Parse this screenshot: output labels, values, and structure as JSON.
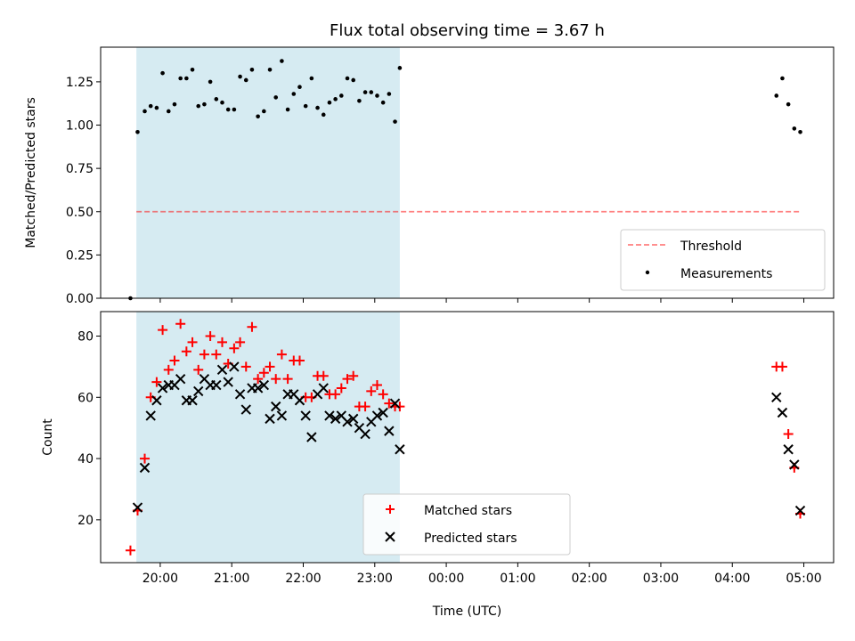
{
  "chart_data": [
    {
      "type": "scatter",
      "title": "Flux total observing time = 3.67 h",
      "xlabel": "",
      "ylabel": "Matched/Predicted stars",
      "ylim": [
        0,
        1.45
      ],
      "yticks": [
        "0.00",
        "0.25",
        "0.50",
        "0.75",
        "1.00",
        "1.25"
      ],
      "shaded_span": [
        "19:40",
        "23:21"
      ],
      "shade_color": "#add8e6",
      "threshold": {
        "label": "Threshold",
        "value": 0.5,
        "x": [
          "19:40",
          "04:57"
        ],
        "color": "#ff0000"
      },
      "legend_position": "lower right",
      "series": [
        {
          "name": "Measurements",
          "marker": "dot",
          "color": "#000000",
          "points": [
            [
              "19:35",
              0.0
            ],
            [
              "19:41",
              0.96
            ],
            [
              "19:47",
              1.08
            ],
            [
              "19:52",
              1.11
            ],
            [
              "19:57",
              1.1
            ],
            [
              "20:02",
              1.3
            ],
            [
              "20:07",
              1.08
            ],
            [
              "20:12",
              1.12
            ],
            [
              "20:17",
              1.27
            ],
            [
              "20:22",
              1.27
            ],
            [
              "20:27",
              1.32
            ],
            [
              "20:32",
              1.11
            ],
            [
              "20:37",
              1.12
            ],
            [
              "20:42",
              1.25
            ],
            [
              "20:47",
              1.15
            ],
            [
              "20:52",
              1.13
            ],
            [
              "20:57",
              1.09
            ],
            [
              "21:02",
              1.09
            ],
            [
              "21:07",
              1.28
            ],
            [
              "21:12",
              1.26
            ],
            [
              "21:17",
              1.32
            ],
            [
              "21:22",
              1.05
            ],
            [
              "21:27",
              1.08
            ],
            [
              "21:32",
              1.32
            ],
            [
              "21:37",
              1.16
            ],
            [
              "21:42",
              1.37
            ],
            [
              "21:47",
              1.09
            ],
            [
              "21:52",
              1.18
            ],
            [
              "21:57",
              1.22
            ],
            [
              "22:02",
              1.11
            ],
            [
              "22:07",
              1.27
            ],
            [
              "22:12",
              1.1
            ],
            [
              "22:17",
              1.06
            ],
            [
              "22:22",
              1.13
            ],
            [
              "22:27",
              1.15
            ],
            [
              "22:32",
              1.17
            ],
            [
              "22:37",
              1.27
            ],
            [
              "22:42",
              1.26
            ],
            [
              "22:47",
              1.14
            ],
            [
              "22:52",
              1.19
            ],
            [
              "22:57",
              1.19
            ],
            [
              "23:02",
              1.17
            ],
            [
              "23:07",
              1.13
            ],
            [
              "23:12",
              1.18
            ],
            [
              "23:17",
              1.02
            ],
            [
              "23:21",
              1.33
            ],
            [
              "04:37",
              1.17
            ],
            [
              "04:42",
              1.27
            ],
            [
              "04:47",
              1.12
            ],
            [
              "04:52",
              0.98
            ],
            [
              "04:57",
              0.96
            ]
          ]
        }
      ]
    },
    {
      "type": "scatter",
      "title": "",
      "xlabel": "Time (UTC)",
      "ylabel": "Count",
      "ylim": [
        6,
        88
      ],
      "yticks": [
        "20",
        "40",
        "60",
        "80"
      ],
      "xlim": [
        "19:10",
        "05:25"
      ],
      "xticks": [
        "20:00",
        "21:00",
        "22:00",
        "23:00",
        "00:00",
        "01:00",
        "02:00",
        "03:00",
        "04:00",
        "05:00"
      ],
      "shaded_span": [
        "19:40",
        "23:21"
      ],
      "shade_color": "#add8e6",
      "legend_position": "lower center",
      "series": [
        {
          "name": "Matched stars",
          "marker": "plus",
          "color": "#ff0000",
          "points": [
            [
              "19:35",
              10
            ],
            [
              "19:41",
              23
            ],
            [
              "19:47",
              40
            ],
            [
              "19:52",
              60
            ],
            [
              "19:57",
              65
            ],
            [
              "20:02",
              82
            ],
            [
              "20:07",
              69
            ],
            [
              "20:12",
              72
            ],
            [
              "20:17",
              84
            ],
            [
              "20:22",
              75
            ],
            [
              "20:27",
              78
            ],
            [
              "20:32",
              69
            ],
            [
              "20:37",
              74
            ],
            [
              "20:42",
              80
            ],
            [
              "20:47",
              74
            ],
            [
              "20:52",
              78
            ],
            [
              "20:57",
              71
            ],
            [
              "21:02",
              76
            ],
            [
              "21:07",
              78
            ],
            [
              "21:12",
              70
            ],
            [
              "21:17",
              83
            ],
            [
              "21:22",
              66
            ],
            [
              "21:27",
              68
            ],
            [
              "21:32",
              70
            ],
            [
              "21:37",
              66
            ],
            [
              "21:42",
              74
            ],
            [
              "21:47",
              66
            ],
            [
              "21:52",
              72
            ],
            [
              "21:57",
              72
            ],
            [
              "22:02",
              60
            ],
            [
              "22:07",
              60
            ],
            [
              "22:12",
              67
            ],
            [
              "22:17",
              67
            ],
            [
              "22:22",
              61
            ],
            [
              "22:27",
              61
            ],
            [
              "22:32",
              63
            ],
            [
              "22:37",
              66
            ],
            [
              "22:42",
              67
            ],
            [
              "22:47",
              57
            ],
            [
              "22:52",
              57
            ],
            [
              "22:57",
              62
            ],
            [
              "23:02",
              64
            ],
            [
              "23:07",
              61
            ],
            [
              "23:12",
              58
            ],
            [
              "23:17",
              57
            ],
            [
              "23:21",
              57
            ],
            [
              "04:37",
              70
            ],
            [
              "04:42",
              70
            ],
            [
              "04:47",
              48
            ],
            [
              "04:52",
              37
            ],
            [
              "04:57",
              22
            ]
          ]
        },
        {
          "name": "Predicted stars",
          "marker": "x",
          "color": "#000000",
          "points": [
            [
              "19:41",
              24
            ],
            [
              "19:47",
              37
            ],
            [
              "19:52",
              54
            ],
            [
              "19:57",
              59
            ],
            [
              "20:02",
              63
            ],
            [
              "20:07",
              64
            ],
            [
              "20:12",
              64
            ],
            [
              "20:17",
              66
            ],
            [
              "20:22",
              59
            ],
            [
              "20:27",
              59
            ],
            [
              "20:32",
              62
            ],
            [
              "20:37",
              66
            ],
            [
              "20:42",
              64
            ],
            [
              "20:47",
              64
            ],
            [
              "20:52",
              69
            ],
            [
              "20:57",
              65
            ],
            [
              "21:02",
              70
            ],
            [
              "21:07",
              61
            ],
            [
              "21:12",
              56
            ],
            [
              "21:17",
              63
            ],
            [
              "21:22",
              63
            ],
            [
              "21:27",
              64
            ],
            [
              "21:32",
              53
            ],
            [
              "21:37",
              57
            ],
            [
              "21:42",
              54
            ],
            [
              "21:47",
              61
            ],
            [
              "21:52",
              61
            ],
            [
              "21:57",
              59
            ],
            [
              "22:02",
              54
            ],
            [
              "22:07",
              47
            ],
            [
              "22:12",
              61
            ],
            [
              "22:17",
              63
            ],
            [
              "22:22",
              54
            ],
            [
              "22:27",
              53
            ],
            [
              "22:32",
              54
            ],
            [
              "22:37",
              52
            ],
            [
              "22:42",
              53
            ],
            [
              "22:47",
              50
            ],
            [
              "22:52",
              48
            ],
            [
              "22:57",
              52
            ],
            [
              "23:02",
              54
            ],
            [
              "23:07",
              55
            ],
            [
              "23:12",
              49
            ],
            [
              "23:17",
              58
            ],
            [
              "23:21",
              43
            ],
            [
              "04:37",
              60
            ],
            [
              "04:42",
              55
            ],
            [
              "04:47",
              43
            ],
            [
              "04:52",
              38
            ],
            [
              "04:57",
              23
            ]
          ]
        }
      ]
    }
  ]
}
